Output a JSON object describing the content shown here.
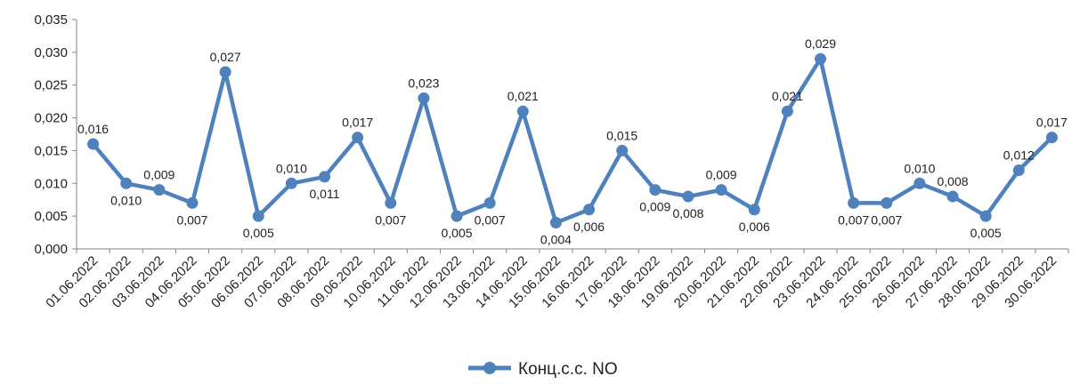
{
  "chart_data": {
    "type": "line",
    "title": "",
    "xlabel": "",
    "ylabel": "",
    "categories": [
      "01.06.2022",
      "02.06.2022",
      "03.06.2022",
      "04.06.2022",
      "05.06.2022",
      "06.06.2022",
      "07.06.2022",
      "08.06.2022",
      "09.06.2022",
      "10.06.2022",
      "11.06.2022",
      "12.06.2022",
      "13.06.2022",
      "14.06.2022",
      "15.06.2022",
      "16.06.2022",
      "17.06.2022",
      "18.06.2022",
      "19.06.2022",
      "20.06.2022",
      "21.06.2022",
      "22.06.2022",
      "23.06.2022",
      "24.06.2022",
      "25.06.2022",
      "26.06.2022",
      "27.06.2022",
      "28.06.2022",
      "29.06.2022",
      "30.06.2022"
    ],
    "series": [
      {
        "name": "Конц.с.с. NO",
        "values": [
          0.016,
          0.01,
          0.009,
          0.007,
          0.027,
          0.005,
          0.01,
          0.011,
          0.017,
          0.007,
          0.023,
          0.005,
          0.007,
          0.021,
          0.004,
          0.006,
          0.015,
          0.009,
          0.008,
          0.009,
          0.006,
          0.021,
          0.029,
          0.007,
          0.007,
          0.01,
          0.008,
          0.005,
          0.012,
          0.017
        ],
        "labels": [
          "0,016",
          "0,010",
          "0,009",
          "0,007",
          "0,027",
          "0,005",
          "0,010",
          "0,011",
          "0,017",
          "0,007",
          "0,023",
          "0,005",
          "0,007",
          "0,021",
          "0,004",
          "0,006",
          "0,015",
          "0,009",
          "0,008",
          "0,009",
          "0,006",
          "0,021",
          "0,029",
          "0,007",
          "0,007",
          "0,010",
          "0,008",
          "0,005",
          "0,012",
          "0,017"
        ]
      }
    ],
    "yticks": [
      "0,000",
      "0,005",
      "0,010",
      "0,015",
      "0,020",
      "0,025",
      "0,030",
      "0,035"
    ],
    "ylim": [
      0,
      0.035
    ],
    "grid": false,
    "legend_position": "bottom-center",
    "line_color": "#4f81bd"
  }
}
